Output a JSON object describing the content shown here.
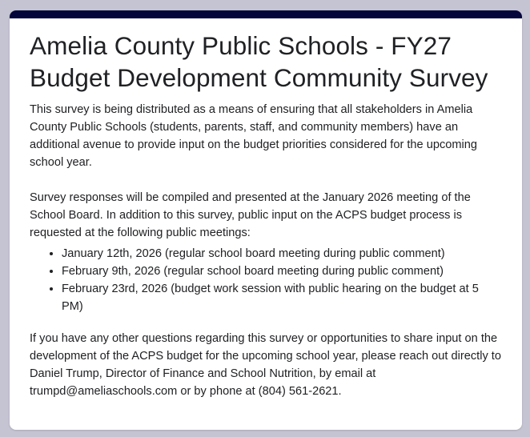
{
  "form": {
    "title": "Amelia County Public Schools - FY27 Budget Development Community Survey",
    "paragraph1": "This survey is being distributed as a means of ensuring that all stakeholders in Amelia County Public Schools (students, parents, staff, and community members) have an additional avenue to provide input on the budget priorities considered for the upcoming school year.",
    "paragraph2": "Survey responses will be compiled and presented at the January 2026 meeting of the School Board. In addition to this survey, public input on the ACPS budget process is requested at the following public meetings:",
    "meetings": [
      "January 12th, 2026 (regular school board meeting during public comment)",
      "February 9th, 2026 (regular school board meeting during public comment)",
      "February 23rd, 2026 (budget work session with public hearing on the budget at 5 PM)"
    ],
    "paragraph3": "If you have any other questions regarding this survey or opportunities to share input on the development of the ACPS budget for the upcoming school year, please reach out directly to Daniel Trump, Director of Finance and School Nutrition, by email at trumpd@ameliaschools.com or by phone at (804) 561-2621."
  },
  "colors": {
    "accent": "#03053b",
    "background": "#c5c4d3"
  }
}
